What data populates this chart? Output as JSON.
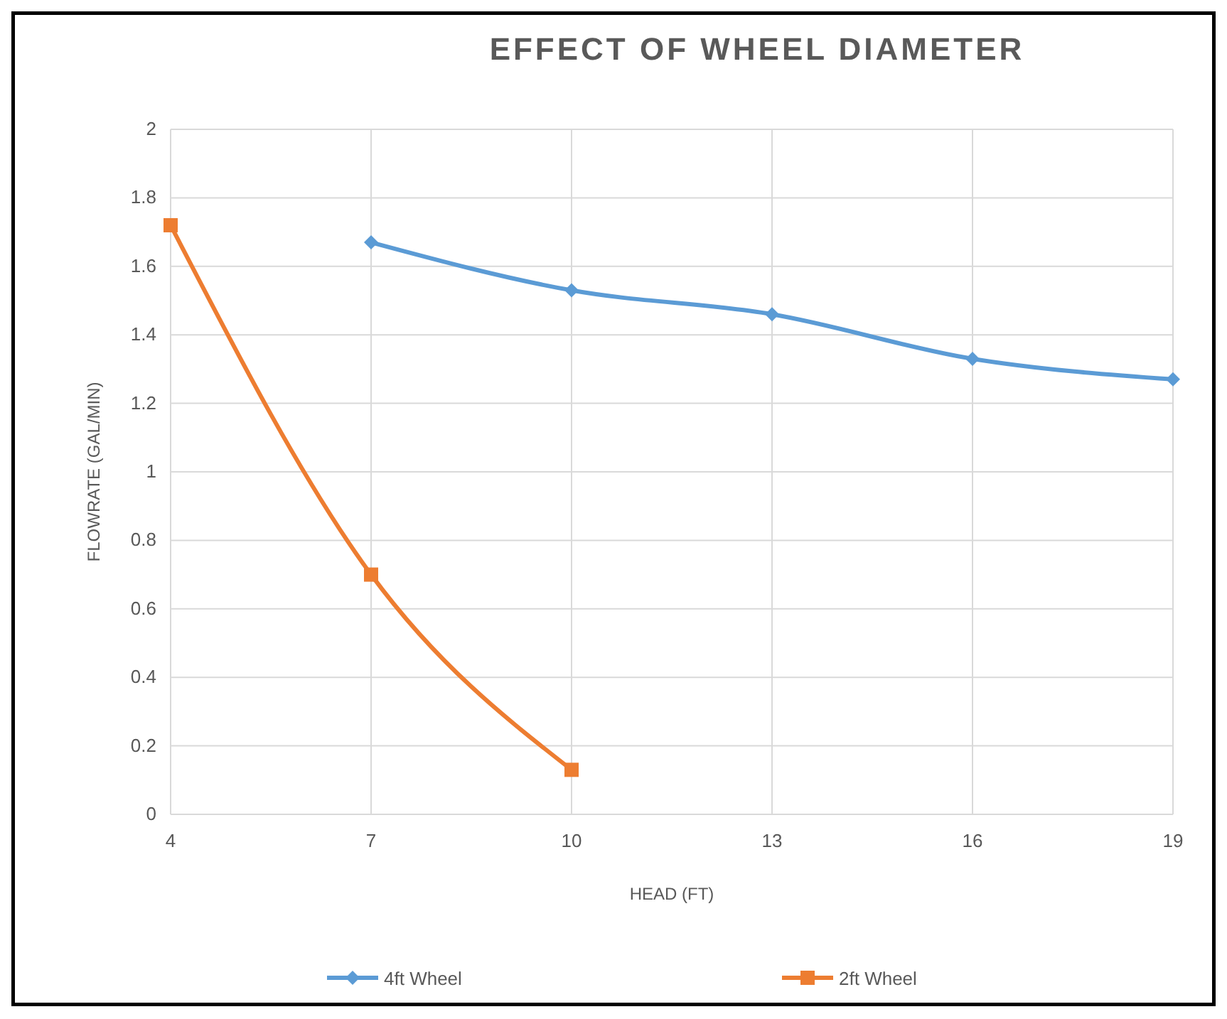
{
  "chart_data": {
    "type": "line",
    "title": "EFFECT OF WHEEL DIAMETER",
    "xlabel": "HEAD (FT)",
    "ylabel": "FLOWRATE (GAL/MIN)",
    "xlim": [
      4,
      19
    ],
    "xticks": [
      4,
      7,
      10,
      13,
      16,
      19
    ],
    "ylim": [
      0,
      2
    ],
    "yticks": [
      0,
      {
        "value": 0.2,
        "label": "0.2"
      },
      {
        "value": 0.4,
        "label": "0.4"
      },
      {
        "value": 0.6,
        "label": "0.6"
      },
      {
        "value": 0.8,
        "label": "0.8"
      },
      1,
      {
        "value": 1.2,
        "label": "1.2"
      },
      {
        "value": 1.4,
        "label": "1.4"
      },
      {
        "value": 1.6,
        "label": "1.6"
      },
      {
        "value": 1.8,
        "label": "1.8"
      },
      2
    ],
    "grid": true,
    "legend": "bottom",
    "series": [
      {
        "name": "4ft Wheel",
        "color": "#5b9bd5",
        "marker": "diamond",
        "x": [
          7,
          10,
          13,
          16,
          19
        ],
        "values": [
          1.67,
          1.53,
          1.46,
          1.33,
          1.27
        ]
      },
      {
        "name": "2ft Wheel",
        "color": "#ed7d31",
        "marker": "square",
        "x": [
          4,
          7,
          10
        ],
        "values": [
          1.72,
          0.7,
          0.13
        ]
      }
    ]
  }
}
